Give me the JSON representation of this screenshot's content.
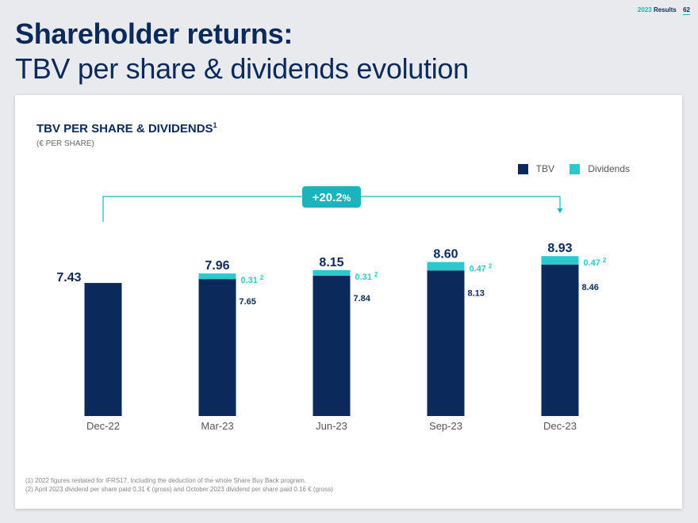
{
  "header": {
    "year": "2023",
    "label": "Results",
    "page_number": "62"
  },
  "title": {
    "bold": "Shareholder returns:",
    "light": "TBV per share & dividends evolution"
  },
  "footnotes": [
    "(1) 2022 figures restated for IFRS17. Including the deduction of the whole Share Buy Back  program.",
    "(2) April 2023 dividend per share paid 0.31 € (gross) and October 2023 dividend per share paid 0.16 € (gross)"
  ],
  "chart_data": {
    "type": "bar",
    "stacked": true,
    "title": "TBV PER SHARE & DIVIDENDS",
    "title_footnote": "1",
    "subtitle": "(€ PER SHARE)",
    "categories": [
      "Dec-22",
      "Mar-23",
      "Jun-23",
      "Sep-23",
      "Dec-23"
    ],
    "series": [
      {
        "name": "TBV",
        "color": "#0b2a5b",
        "values": [
          7.43,
          7.65,
          7.84,
          8.13,
          8.46
        ]
      },
      {
        "name": "Dividends",
        "color": "#2bc9cd",
        "values": [
          0,
          0.31,
          0.31,
          0.47,
          0.47
        ]
      }
    ],
    "tbv_labels": [
      "",
      "7.65",
      "7.84",
      "8.13",
      "8.46"
    ],
    "dividend_labels": [
      "",
      "0.31",
      "0.31",
      "0.47",
      "0.47"
    ],
    "dividend_footnote": "2",
    "total_labels": [
      "7.43",
      "7.96",
      "8.15",
      "8.60",
      "8.93"
    ],
    "growth_annotation": {
      "value": "+20.2",
      "unit": "%",
      "color": "#1bb3bc"
    },
    "legend_position": "top-right",
    "ylim": [
      0,
      9.5
    ],
    "grid": false,
    "xlabel": "",
    "ylabel": ""
  }
}
